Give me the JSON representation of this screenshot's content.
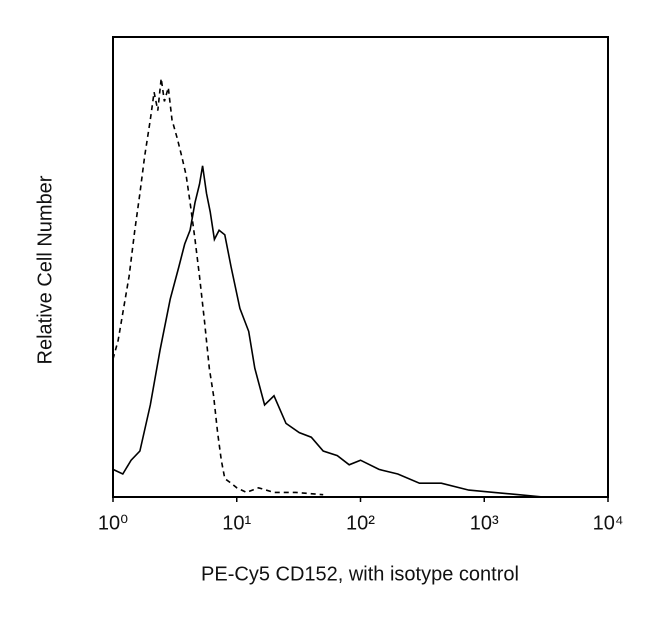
{
  "chart_data": {
    "type": "line",
    "x_label": "PE-Cy5 CD152, with isotype control",
    "y_label": "Relative Cell Number",
    "xlog": true,
    "xlim": [
      1,
      10000
    ],
    "xticks": [
      {
        "value": 1,
        "label": "10⁰"
      },
      {
        "value": 10,
        "label": "10¹"
      },
      {
        "value": 100,
        "label": "10²"
      },
      {
        "value": 1000,
        "label": "10³"
      },
      {
        "value": 10000,
        "label": "10⁴"
      }
    ],
    "ylim": [
      0,
      100
    ],
    "series": [
      {
        "color": "#000000",
        "line_style": "dashed",
        "x": [
          1,
          1.1,
          1.2,
          1.35,
          1.5,
          1.65,
          1.8,
          2,
          2.15,
          2.3,
          2.45,
          2.6,
          2.8,
          3,
          3.3,
          3.6,
          3.9,
          4.2,
          4.6,
          5,
          5.5,
          6,
          6.5,
          7,
          7.5,
          8,
          9,
          10,
          12,
          15,
          20,
          30,
          50
        ],
        "values": [
          30,
          34,
          40,
          48,
          58,
          66,
          74,
          82,
          88,
          84,
          91,
          86,
          89,
          82,
          78,
          74,
          70,
          64,
          56,
          48,
          38,
          28,
          22,
          14,
          8,
          4,
          3,
          2,
          1,
          2,
          1,
          1,
          0.5
        ]
      },
      {
        "color": "#000000",
        "line_style": "solid",
        "x": [
          1,
          1.2,
          1.4,
          1.65,
          2,
          2.4,
          2.9,
          3.4,
          3.8,
          4.2,
          4.6,
          5,
          5.3,
          5.7,
          6.1,
          6.6,
          7.2,
          8,
          9,
          10.6,
          12.5,
          14,
          16.8,
          20,
          25,
          32,
          40,
          50,
          65,
          81,
          100,
          141,
          200,
          300,
          450,
          750,
          1200,
          1900,
          3000
        ],
        "values": [
          6,
          5,
          8,
          10,
          20,
          32,
          43,
          50,
          55,
          58,
          64,
          68,
          72,
          66,
          62,
          56,
          58,
          57,
          50,
          41,
          36,
          28,
          20,
          22,
          16,
          14,
          13,
          10,
          9,
          7,
          8,
          6,
          5,
          3,
          3,
          1.5,
          1,
          0.5,
          0
        ]
      }
    ]
  }
}
